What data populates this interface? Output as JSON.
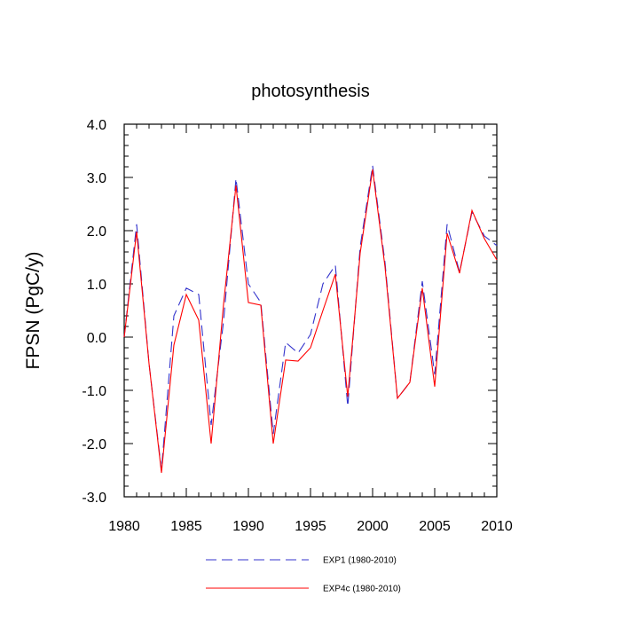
{
  "chart_data": {
    "type": "line",
    "title": "photosynthesis",
    "xlabel": "",
    "ylabel": "FPSN  (PgC/y)",
    "xlim": [
      1980,
      2010
    ],
    "ylim": [
      -3.0,
      4.0
    ],
    "x_ticks": [
      1980,
      1985,
      1990,
      1995,
      2000,
      2005,
      2010
    ],
    "x_tick_labels": [
      "1980",
      "1985",
      "1990",
      "1995",
      "2000",
      "2005",
      "2010"
    ],
    "y_ticks": [
      -3,
      -2,
      -1,
      0,
      1,
      2,
      3,
      4
    ],
    "y_tick_labels": [
      "-3.0",
      "-2.0",
      "-1.0",
      "0.0",
      "1.0",
      "2.0",
      "3.0",
      "4.0"
    ],
    "grid": false,
    "legend_position": "bottom",
    "x": [
      1980,
      1981,
      1982,
      1983,
      1984,
      1985,
      1986,
      1987,
      1988,
      1989,
      1990,
      1991,
      1992,
      1993,
      1994,
      1995,
      1996,
      1997,
      1998,
      1999,
      2000,
      2001,
      2002,
      2003,
      2004,
      2005,
      2006,
      2007,
      2008,
      2009,
      2010
    ],
    "series": [
      {
        "name": "EXP1 (1980-2010)",
        "color": "#3333cc",
        "style": "dashed",
        "values": [
          0.0,
          2.12,
          -0.5,
          -2.5,
          0.4,
          0.92,
          0.8,
          -1.65,
          0.3,
          2.98,
          1.0,
          0.65,
          -1.82,
          -0.1,
          -0.3,
          0.05,
          1.0,
          1.35,
          -1.3,
          1.7,
          3.22,
          1.4,
          -1.15,
          -0.85,
          1.05,
          -0.7,
          2.12,
          1.22,
          2.35,
          1.9,
          1.72
        ]
      },
      {
        "name": "EXP4c (1980-2010)",
        "color": "#ff0000",
        "style": "solid",
        "values": [
          0.0,
          1.98,
          -0.5,
          -2.55,
          -0.15,
          0.8,
          0.32,
          -2.0,
          0.62,
          2.85,
          0.65,
          0.6,
          -2.0,
          -0.43,
          -0.45,
          -0.2,
          0.5,
          1.18,
          -1.12,
          1.58,
          3.15,
          1.32,
          -1.15,
          -0.85,
          0.92,
          -0.93,
          1.95,
          1.2,
          2.38,
          1.85,
          1.45
        ]
      }
    ]
  }
}
